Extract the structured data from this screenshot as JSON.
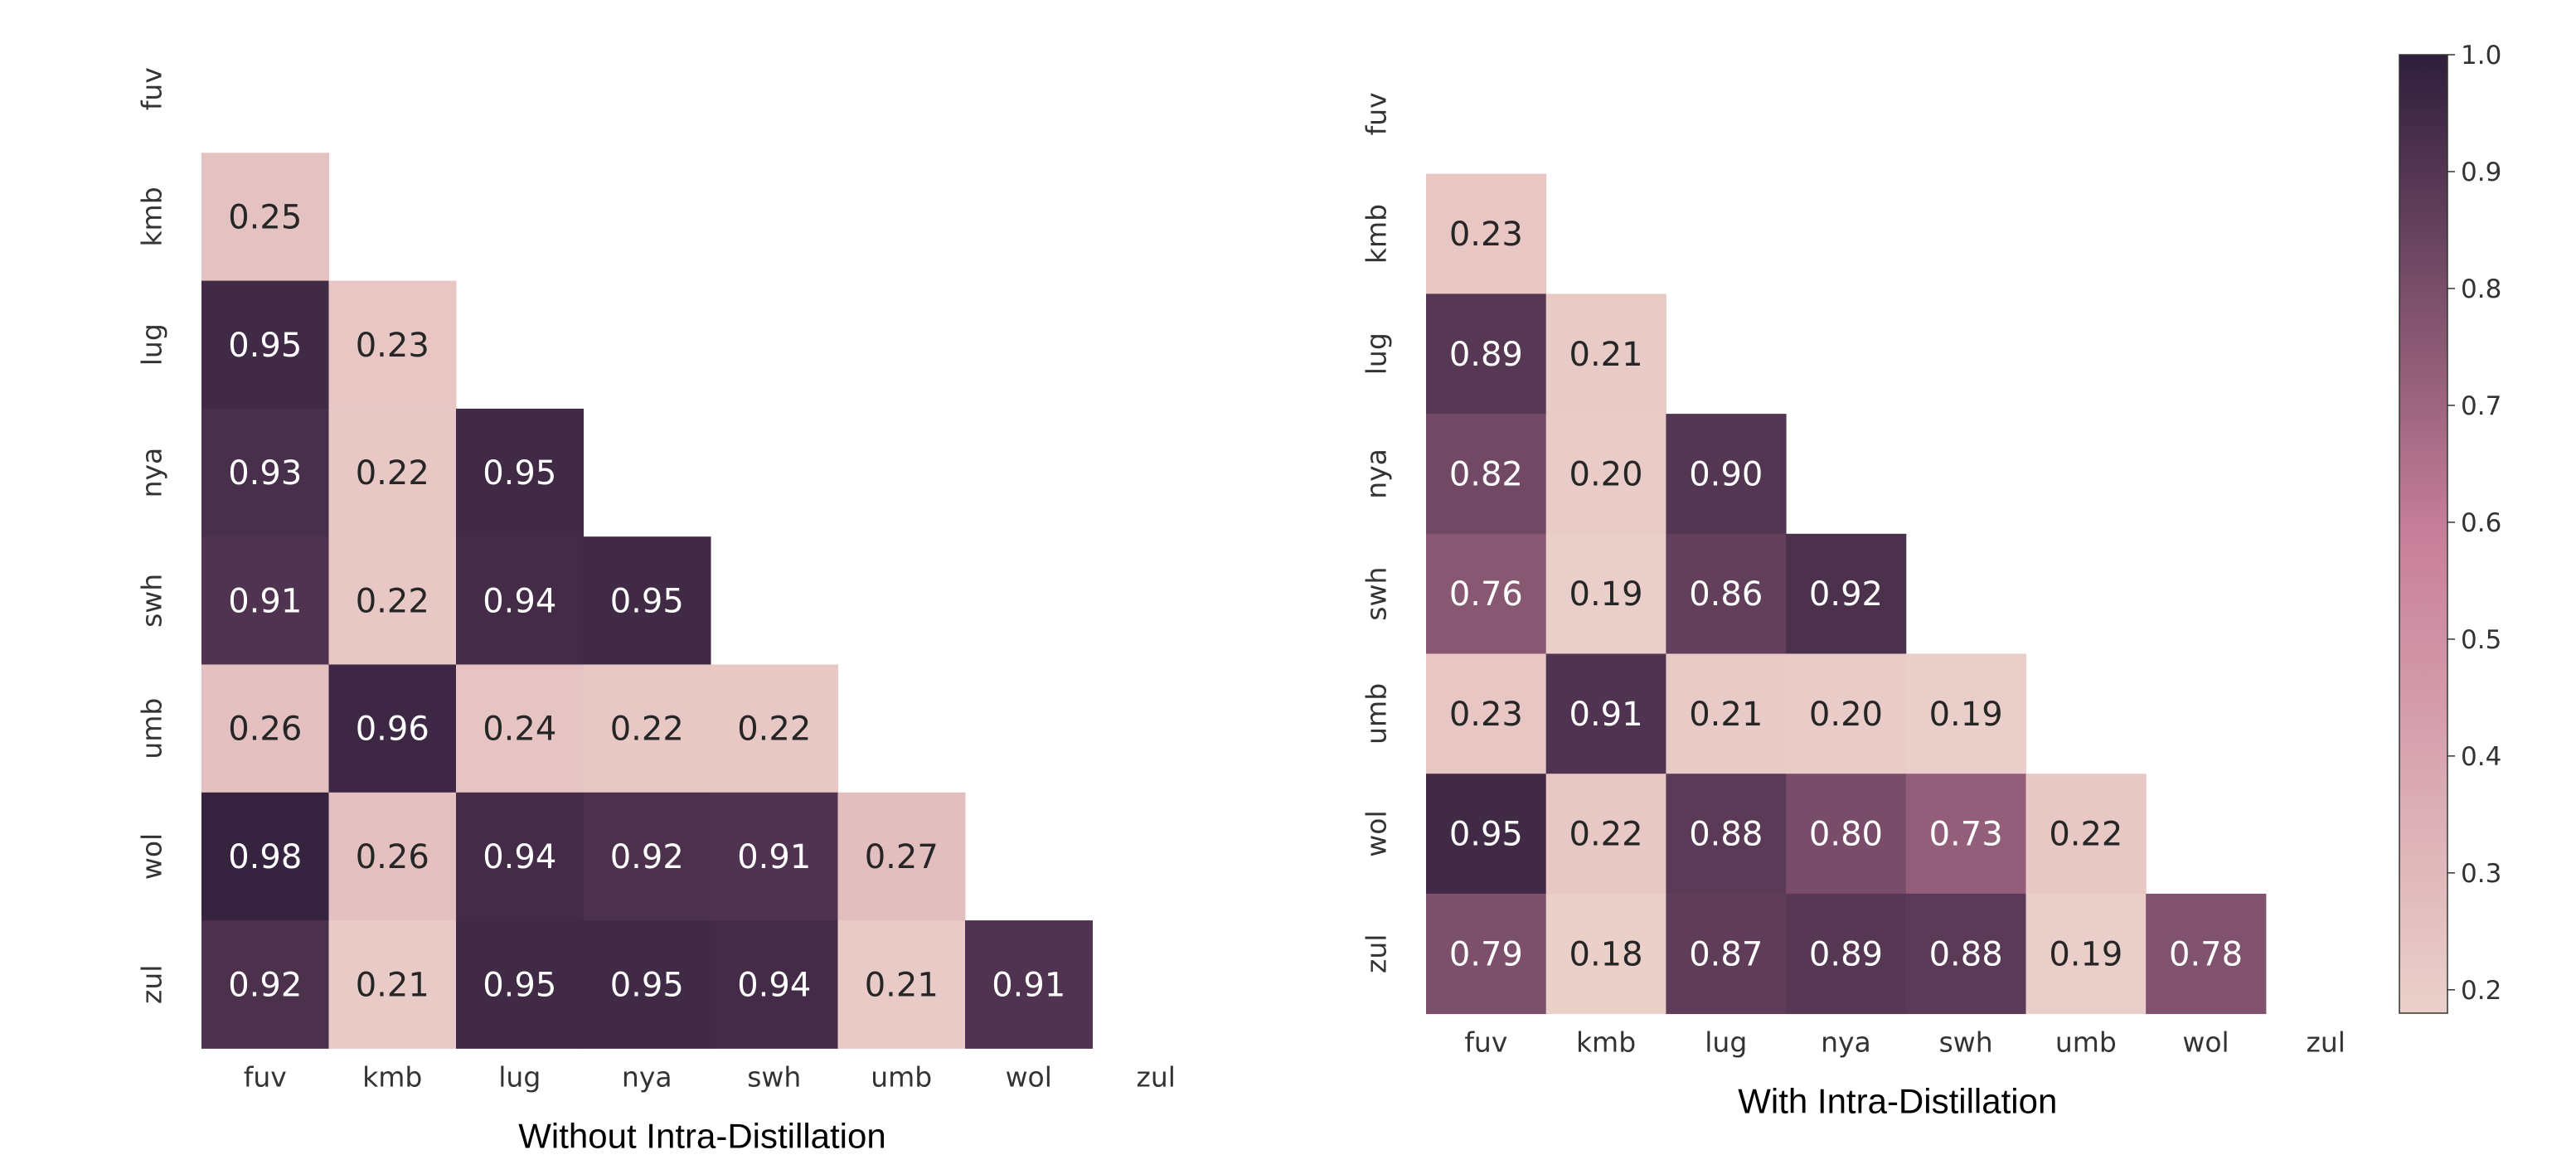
{
  "colors": {
    "low": "#ebd0ca",
    "mid": "#c77f99",
    "high": "#2e1e3b",
    "text_dark": "#262626",
    "text_light": "#ffffff",
    "tick": "#333333"
  },
  "chart_data": [
    {
      "type": "heatmap",
      "title": "Without Intra-Distillation",
      "languages": [
        "fuv",
        "kmb",
        "lug",
        "nya",
        "swh",
        "umb",
        "wol",
        "zul"
      ],
      "mask": "upper triangle and diagonal hidden",
      "vmin": 0.18,
      "vmax": 1.0,
      "values": [
        [
          null,
          null,
          null,
          null,
          null,
          null,
          null,
          null
        ],
        [
          0.25,
          null,
          null,
          null,
          null,
          null,
          null,
          null
        ],
        [
          0.95,
          0.23,
          null,
          null,
          null,
          null,
          null,
          null
        ],
        [
          0.93,
          0.22,
          0.95,
          null,
          null,
          null,
          null,
          null
        ],
        [
          0.91,
          0.22,
          0.94,
          0.95,
          null,
          null,
          null,
          null
        ],
        [
          0.26,
          0.96,
          0.24,
          0.22,
          0.22,
          null,
          null,
          null
        ],
        [
          0.98,
          0.26,
          0.94,
          0.92,
          0.91,
          0.27,
          null,
          null
        ],
        [
          0.92,
          0.21,
          0.95,
          0.95,
          0.94,
          0.21,
          0.91,
          null
        ]
      ],
      "labels": [
        [
          null,
          null,
          null,
          null,
          null,
          null,
          null,
          null
        ],
        [
          "0.25",
          null,
          null,
          null,
          null,
          null,
          null,
          null
        ],
        [
          "0.95",
          "0.23",
          null,
          null,
          null,
          null,
          null,
          null
        ],
        [
          "0.93",
          "0.22",
          "0.95",
          null,
          null,
          null,
          null,
          null
        ],
        [
          "0.91",
          "0.22",
          "0.94",
          "0.95",
          null,
          null,
          null,
          null
        ],
        [
          "0.26",
          "0.96",
          "0.24",
          "0.22",
          "0.22",
          null,
          null,
          null
        ],
        [
          "0.98",
          "0.26",
          "0.94",
          "0.92",
          "0.91",
          "0.27",
          null,
          null
        ],
        [
          "0.92",
          "0.21",
          "0.95",
          "0.95",
          "0.94",
          "0.21",
          "0.91",
          null
        ]
      ]
    },
    {
      "type": "heatmap",
      "title": "With Intra-Distillation",
      "languages": [
        "fuv",
        "kmb",
        "lug",
        "nya",
        "swh",
        "umb",
        "wol",
        "zul"
      ],
      "mask": "upper triangle and diagonal hidden",
      "vmin": 0.18,
      "vmax": 1.0,
      "values": [
        [
          null,
          null,
          null,
          null,
          null,
          null,
          null,
          null
        ],
        [
          0.23,
          null,
          null,
          null,
          null,
          null,
          null,
          null
        ],
        [
          0.89,
          0.21,
          null,
          null,
          null,
          null,
          null,
          null
        ],
        [
          0.82,
          0.2,
          0.9,
          null,
          null,
          null,
          null,
          null
        ],
        [
          0.76,
          0.19,
          0.86,
          0.92,
          null,
          null,
          null,
          null
        ],
        [
          0.23,
          0.91,
          0.21,
          0.2,
          0.19,
          null,
          null,
          null
        ],
        [
          0.95,
          0.22,
          0.88,
          0.8,
          0.73,
          0.22,
          null,
          null
        ],
        [
          0.79,
          0.18,
          0.87,
          0.89,
          0.88,
          0.19,
          0.78,
          null
        ]
      ],
      "labels": [
        [
          null,
          null,
          null,
          null,
          null,
          null,
          null,
          null
        ],
        [
          "0.23",
          null,
          null,
          null,
          null,
          null,
          null,
          null
        ],
        [
          "0.89",
          "0.21",
          null,
          null,
          null,
          null,
          null,
          null
        ],
        [
          "0.82",
          "0.20",
          "0.90",
          null,
          null,
          null,
          null,
          null
        ],
        [
          "0.76",
          "0.19",
          "0.86",
          "0.92",
          null,
          null,
          null,
          null
        ],
        [
          "0.23",
          "0.91",
          "0.21",
          "0.20",
          "0.19",
          null,
          null,
          null
        ],
        [
          "0.95",
          "0.22",
          "0.88",
          "0.80",
          "0.73",
          "0.22",
          null,
          null
        ],
        [
          "0.79",
          "0.18",
          "0.87",
          "0.89",
          "0.88",
          "0.19",
          "0.78",
          null
        ]
      ]
    },
    {
      "type": "colorbar",
      "range": [
        0.18,
        1.0
      ],
      "ticks": [
        {
          "value": 1.0,
          "label": "1.0"
        },
        {
          "value": 0.9,
          "label": "0.9"
        },
        {
          "value": 0.8,
          "label": "0.8"
        },
        {
          "value": 0.7,
          "label": "0.7"
        },
        {
          "value": 0.6,
          "label": "0.6"
        },
        {
          "value": 0.5,
          "label": "0.5"
        },
        {
          "value": 0.4,
          "label": "0.4"
        },
        {
          "value": 0.3,
          "label": "0.3"
        },
        {
          "value": 0.2,
          "label": "0.2"
        }
      ]
    }
  ]
}
